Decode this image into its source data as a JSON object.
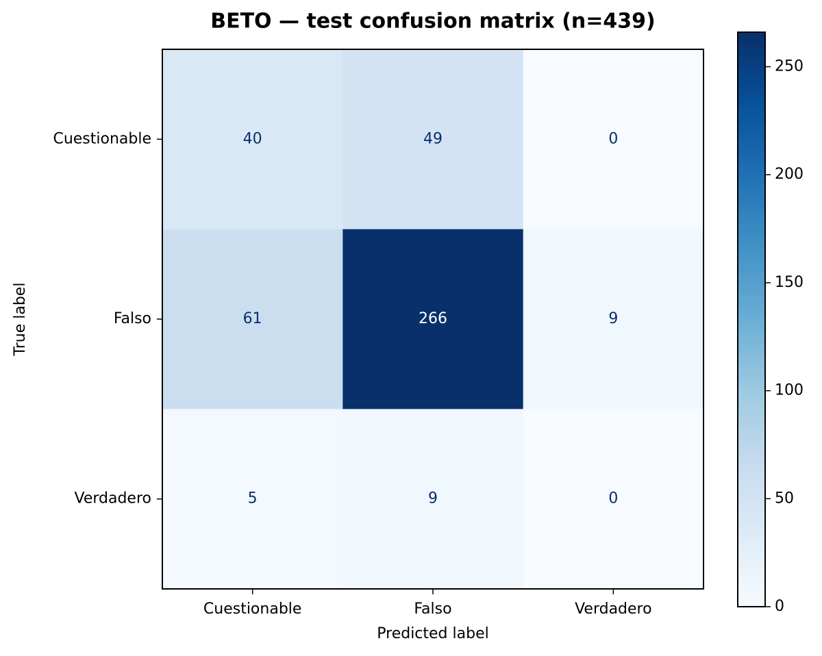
{
  "chart_data": {
    "type": "heatmap",
    "title": "BETO — test confusion matrix (n=439)",
    "xlabel": "Predicted label",
    "ylabel": "True label",
    "x_categories": [
      "Cuestionable",
      "Falso",
      "Verdadero"
    ],
    "y_categories": [
      "Cuestionable",
      "Falso",
      "Verdadero"
    ],
    "values": [
      [
        40,
        49,
        0
      ],
      [
        61,
        266,
        9
      ],
      [
        5,
        9,
        0
      ]
    ],
    "colormap": "Blues",
    "clim": [
      0,
      266
    ],
    "cticks": [
      0,
      50,
      100,
      150,
      200,
      250
    ]
  }
}
